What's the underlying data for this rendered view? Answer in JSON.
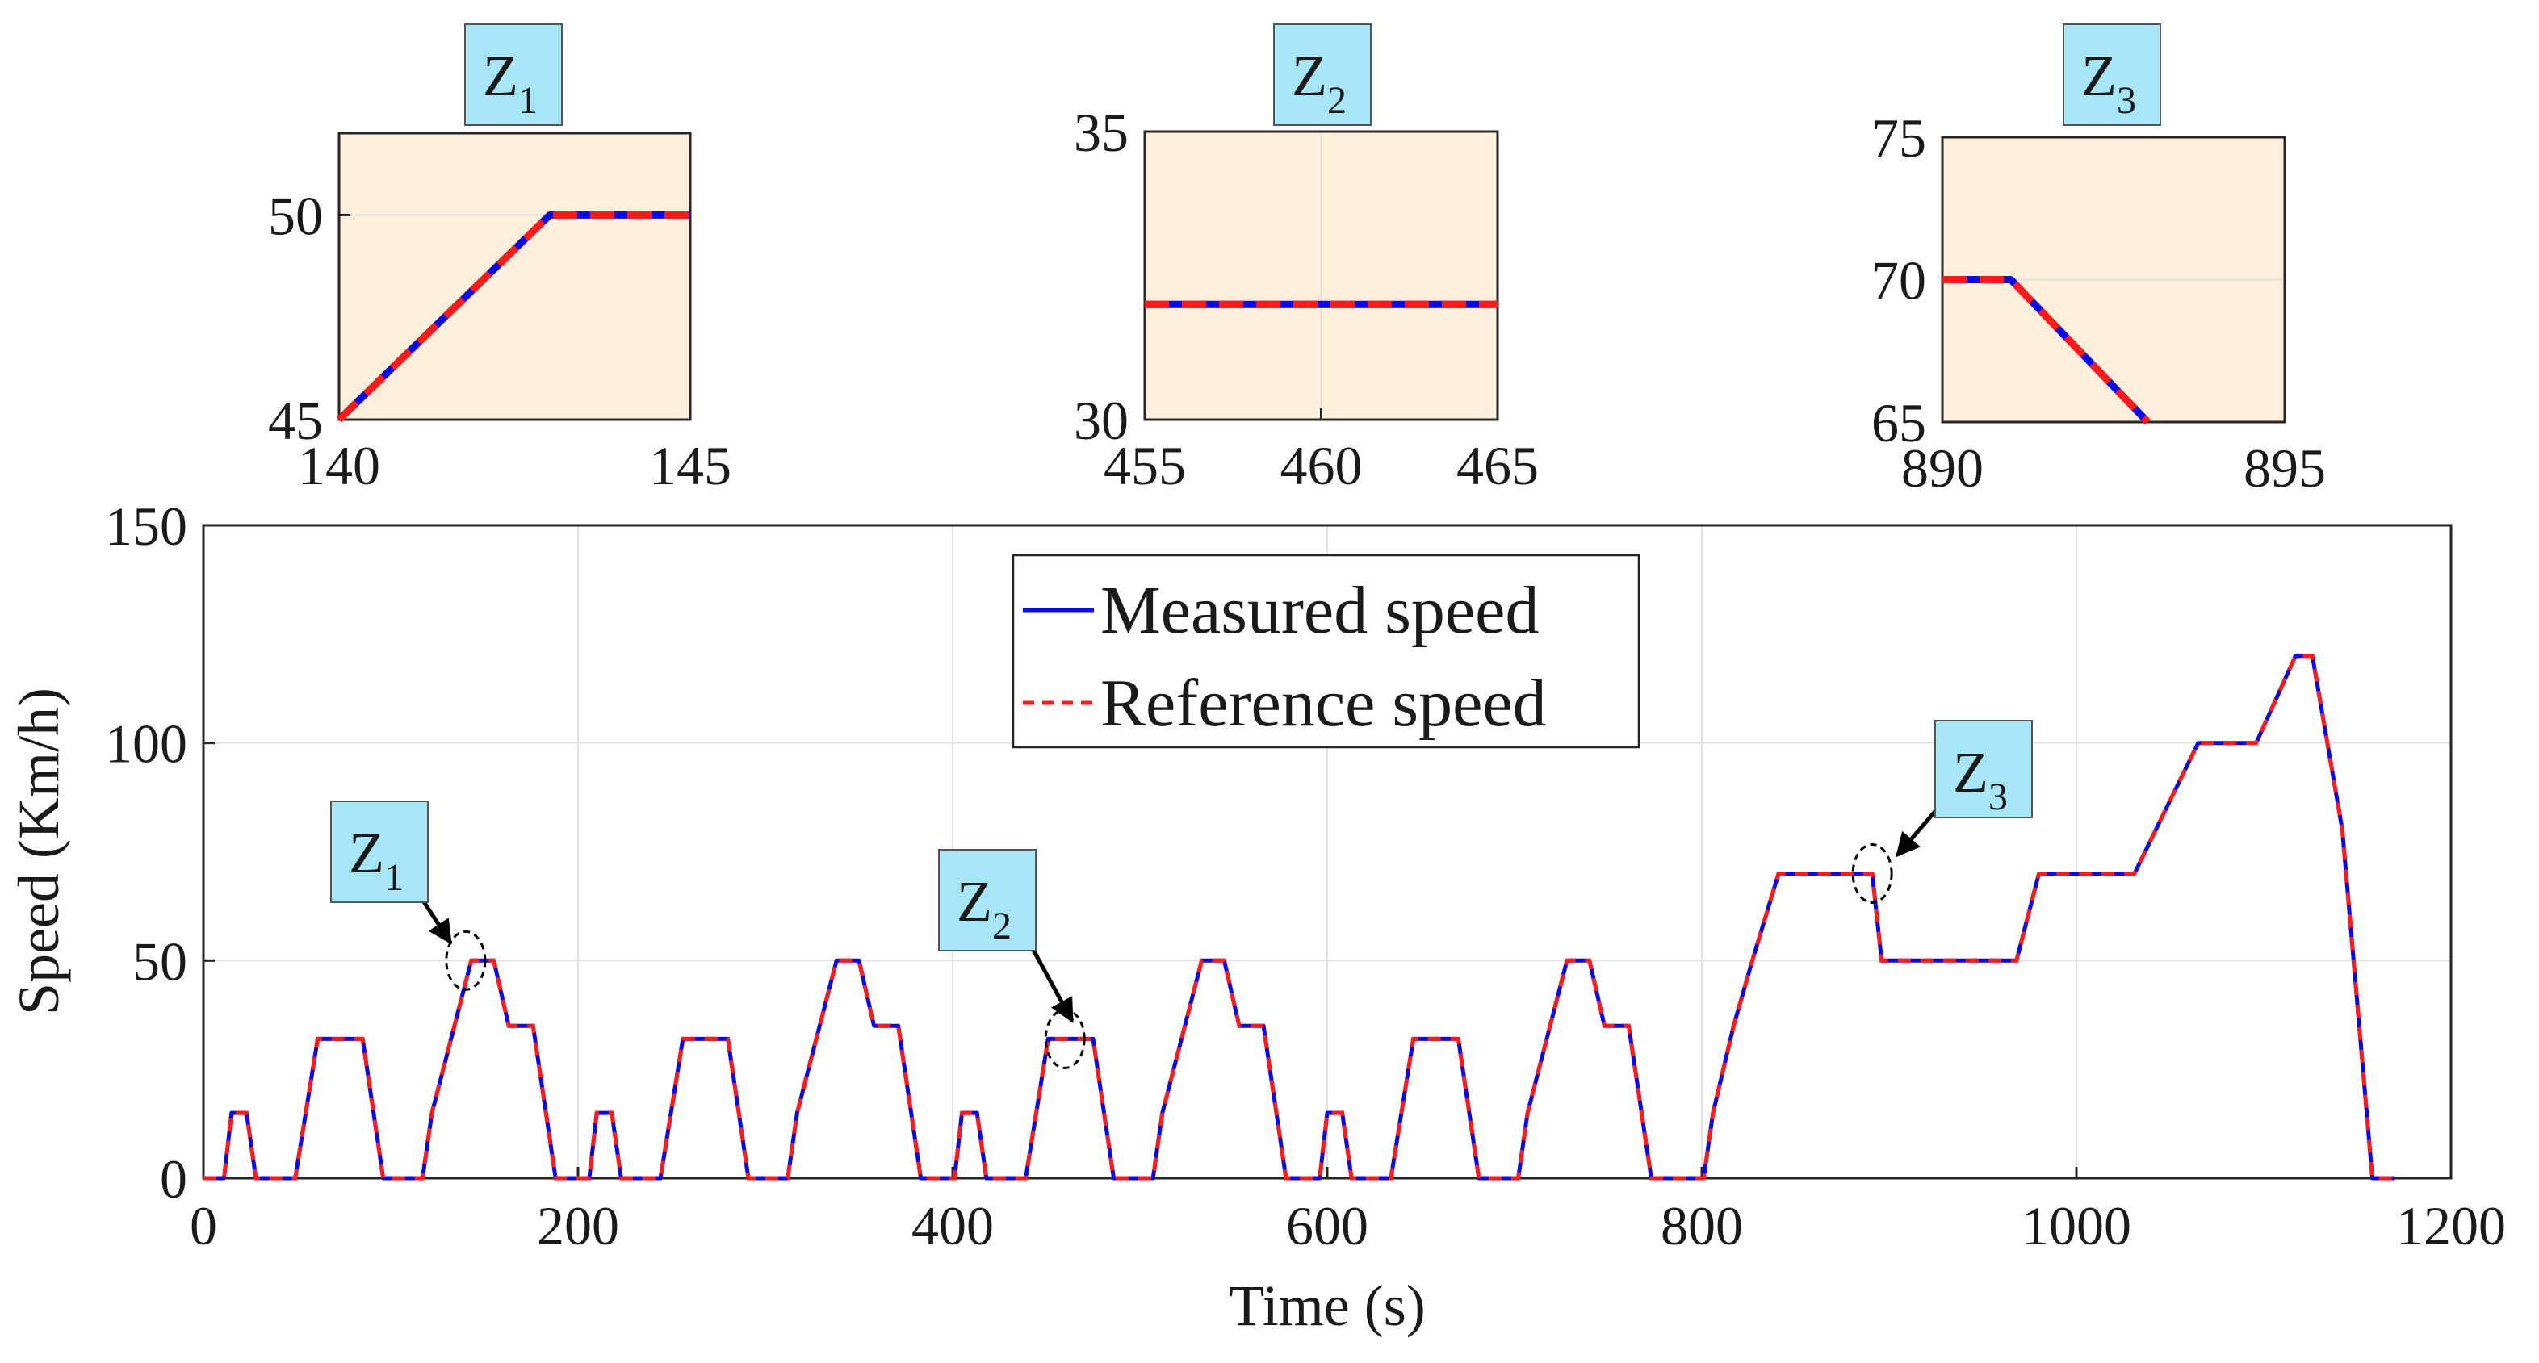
{
  "colors": {
    "measured": "#0a0ae6",
    "reference": "#ff1a1a",
    "inset_bg": "#fdefd9",
    "zoom_box": "#a6e6f7",
    "grid": "#e2e2e2",
    "axis": "#262626"
  },
  "chart_data": [
    {
      "type": "line",
      "role": "main",
      "xlabel": "Time (s)",
      "ylabel": "Speed (Km/h)",
      "xlim": [
        0,
        1200
      ],
      "ylim": [
        0,
        150
      ],
      "xticks": [
        0,
        200,
        400,
        600,
        800,
        1000,
        1200
      ],
      "yticks": [
        0,
        50,
        100,
        150
      ],
      "grid": true,
      "legend_position": "top-center",
      "series": [
        {
          "name": "Measured speed",
          "style": "solid",
          "color_key": "measured"
        },
        {
          "name": "Reference speed",
          "style": "dashed",
          "color_key": "reference"
        }
      ],
      "x": [
        0,
        11,
        15,
        23,
        28,
        49,
        61,
        85,
        96,
        117,
        122,
        143,
        155,
        163,
        176,
        188,
        195,
        206,
        210,
        218,
        223,
        244,
        256,
        280,
        291,
        312,
        317,
        338,
        350,
        358,
        371,
        383,
        390,
        401,
        405,
        413,
        418,
        439,
        451,
        475,
        486,
        507,
        512,
        533,
        545,
        553,
        566,
        578,
        585,
        596,
        600,
        608,
        613,
        634,
        646,
        670,
        681,
        702,
        707,
        728,
        740,
        748,
        761,
        773,
        780,
        801,
        806,
        817,
        827,
        841,
        891,
        896,
        968,
        980,
        1031,
        1065,
        1096,
        1117,
        1126,
        1142,
        1158,
        1164,
        1170
      ],
      "y": [
        0,
        0,
        15,
        15,
        0,
        0,
        32,
        32,
        0,
        0,
        15,
        50,
        50,
        35,
        35,
        0,
        0,
        0,
        15,
        15,
        0,
        0,
        32,
        32,
        0,
        0,
        15,
        50,
        50,
        35,
        35,
        0,
        0,
        0,
        15,
        15,
        0,
        0,
        32,
        32,
        0,
        0,
        15,
        50,
        50,
        35,
        35,
        0,
        0,
        0,
        15,
        15,
        0,
        0,
        32,
        32,
        0,
        0,
        15,
        50,
        50,
        35,
        35,
        0,
        0,
        0,
        15,
        35,
        50,
        70,
        70,
        50,
        50,
        70,
        70,
        100,
        100,
        120,
        120,
        80,
        0,
        0,
        0
      ],
      "annotations": [
        {
          "label": "Z",
          "sub": "1",
          "x": 140,
          "y": 50
        },
        {
          "label": "Z",
          "sub": "2",
          "x": 460,
          "y": 32
        },
        {
          "label": "Z",
          "sub": "3",
          "x": 891,
          "y": 70
        }
      ]
    },
    {
      "type": "line",
      "role": "inset",
      "title": "Z",
      "title_sub": "1",
      "xlim": [
        140,
        145
      ],
      "ylim": [
        45,
        52
      ],
      "xticks": [
        140,
        145
      ],
      "yticks": [
        45,
        50
      ],
      "xtick_labels": [
        "140",
        "145"
      ],
      "ytick_labels": [
        "45",
        "50"
      ],
      "x": [
        140,
        143,
        145
      ],
      "y": [
        45,
        50,
        50
      ]
    },
    {
      "type": "line",
      "role": "inset",
      "title": "Z",
      "title_sub": "2",
      "xlim": [
        455,
        465
      ],
      "ylim": [
        30,
        35
      ],
      "xticks": [
        455,
        460,
        465
      ],
      "yticks": [
        30,
        35
      ],
      "xtick_labels": [
        "455",
        "460",
        "465"
      ],
      "ytick_labels": [
        "30",
        "35"
      ],
      "x": [
        455,
        465
      ],
      "y": [
        32,
        32
      ]
    },
    {
      "type": "line",
      "role": "inset",
      "title": "Z",
      "title_sub": "3",
      "xlim": [
        890,
        895
      ],
      "ylim": [
        65,
        75
      ],
      "xticks": [
        890,
        895
      ],
      "yticks": [
        65,
        70,
        75
      ],
      "xtick_labels": [
        "890",
        "895"
      ],
      "ytick_labels": [
        "65",
        "70",
        "75"
      ],
      "x": [
        890,
        891,
        893
      ],
      "y": [
        70,
        70,
        65
      ]
    }
  ]
}
